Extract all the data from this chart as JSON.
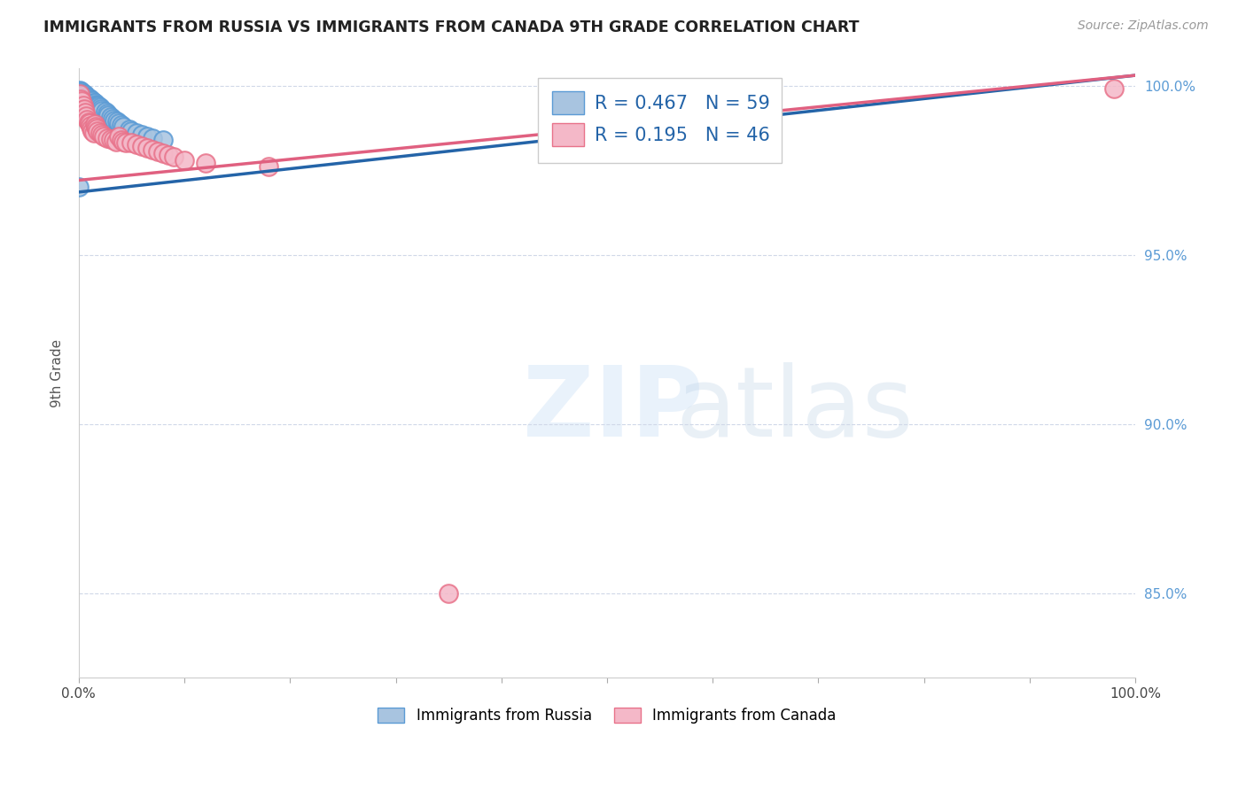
{
  "title": "IMMIGRANTS FROM RUSSIA VS IMMIGRANTS FROM CANADA 9TH GRADE CORRELATION CHART",
  "source": "Source: ZipAtlas.com",
  "ylabel": "9th Grade",
  "xlim": [
    0.0,
    1.0
  ],
  "ylim": [
    0.825,
    1.005
  ],
  "x_ticks": [
    0.0,
    0.1,
    0.2,
    0.3,
    0.4,
    0.5,
    0.6,
    0.7,
    0.8,
    0.9,
    1.0
  ],
  "x_tick_labels": [
    "0.0%",
    "",
    "",
    "",
    "",
    "",
    "",
    "",
    "",
    "",
    "100.0%"
  ],
  "y_ticks": [
    0.85,
    0.9,
    0.95,
    1.0
  ],
  "y_tick_labels": [
    "85.0%",
    "90.0%",
    "95.0%",
    "100.0%"
  ],
  "russia_color": "#a8c4e0",
  "russia_edge_color": "#5b9bd5",
  "canada_color": "#f4b8c8",
  "canada_edge_color": "#e8728a",
  "russia_line_color": "#2464a8",
  "canada_line_color": "#e06080",
  "R_russia": 0.467,
  "N_russia": 59,
  "R_canada": 0.195,
  "N_canada": 46,
  "russia_line_x0": 0.0,
  "russia_line_y0": 0.9685,
  "russia_line_x1": 1.0,
  "russia_line_y1": 1.003,
  "canada_line_x0": 0.0,
  "canada_line_y0": 0.972,
  "canada_line_x1": 1.0,
  "canada_line_y1": 1.003,
  "russia_x": [
    0.0,
    0.001,
    0.001,
    0.001,
    0.002,
    0.002,
    0.002,
    0.002,
    0.003,
    0.003,
    0.003,
    0.003,
    0.004,
    0.004,
    0.004,
    0.005,
    0.005,
    0.005,
    0.006,
    0.006,
    0.006,
    0.007,
    0.007,
    0.008,
    0.008,
    0.009,
    0.009,
    0.01,
    0.01,
    0.011,
    0.012,
    0.012,
    0.013,
    0.014,
    0.015,
    0.016,
    0.017,
    0.018,
    0.019,
    0.02,
    0.021,
    0.022,
    0.025,
    0.027,
    0.028,
    0.03,
    0.032,
    0.034,
    0.036,
    0.038,
    0.04,
    0.042,
    0.048,
    0.05,
    0.055,
    0.06,
    0.065,
    0.07,
    0.08
  ],
  "russia_y": [
    0.97,
    0.9985,
    0.9975,
    0.9965,
    0.9982,
    0.9975,
    0.9968,
    0.996,
    0.998,
    0.9973,
    0.9966,
    0.9958,
    0.9975,
    0.9968,
    0.996,
    0.9975,
    0.9968,
    0.996,
    0.9972,
    0.9964,
    0.9956,
    0.9968,
    0.996,
    0.9965,
    0.9958,
    0.9962,
    0.9954,
    0.9962,
    0.9954,
    0.9958,
    0.9958,
    0.995,
    0.9953,
    0.995,
    0.9948,
    0.9945,
    0.9942,
    0.994,
    0.9938,
    0.9935,
    0.993,
    0.9925,
    0.9922,
    0.9918,
    0.9912,
    0.9908,
    0.9903,
    0.9898,
    0.9894,
    0.9888,
    0.9884,
    0.9878,
    0.987,
    0.9865,
    0.986,
    0.9855,
    0.985,
    0.9845,
    0.9838
  ],
  "canada_x": [
    0.001,
    0.001,
    0.002,
    0.003,
    0.003,
    0.004,
    0.004,
    0.005,
    0.006,
    0.007,
    0.008,
    0.009,
    0.01,
    0.011,
    0.012,
    0.013,
    0.014,
    0.015,
    0.016,
    0.017,
    0.018,
    0.02,
    0.022,
    0.024,
    0.027,
    0.03,
    0.033,
    0.035,
    0.038,
    0.04,
    0.042,
    0.045,
    0.05,
    0.055,
    0.06,
    0.065,
    0.07,
    0.075,
    0.08,
    0.085,
    0.09,
    0.1,
    0.12,
    0.18,
    0.35,
    0.98
  ],
  "canada_y": [
    0.9975,
    0.9945,
    0.996,
    0.9955,
    0.9925,
    0.994,
    0.9928,
    0.993,
    0.992,
    0.991,
    0.99,
    0.9892,
    0.9888,
    0.988,
    0.9872,
    0.9865,
    0.986,
    0.9885,
    0.9878,
    0.9872,
    0.9865,
    0.986,
    0.9855,
    0.985,
    0.9845,
    0.9842,
    0.984,
    0.9835,
    0.985,
    0.984,
    0.9835,
    0.983,
    0.9832,
    0.9825,
    0.982,
    0.9815,
    0.981,
    0.9806,
    0.98,
    0.9795,
    0.979,
    0.978,
    0.977,
    0.976,
    0.85,
    0.999
  ]
}
